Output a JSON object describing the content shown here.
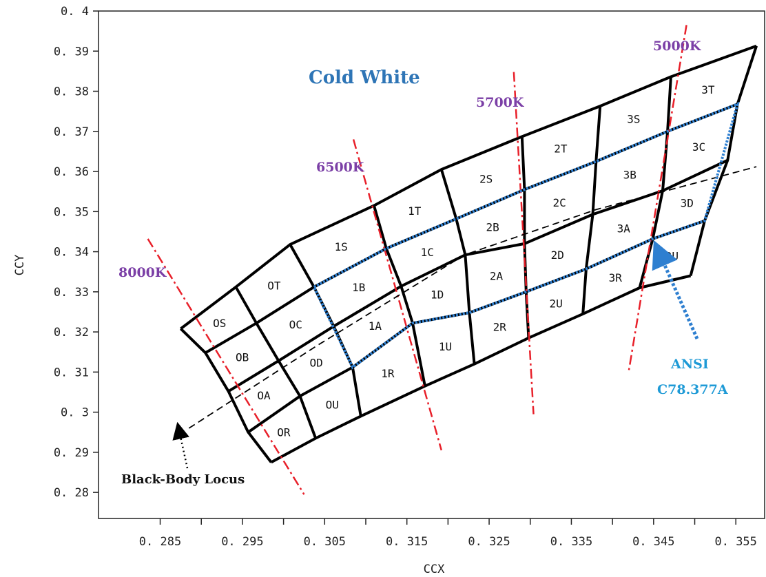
{
  "chart_data": {
    "type": "diagram",
    "title": "Cold White",
    "xlabel": "CCX",
    "ylabel": "CCY",
    "xlim": [
      0.2775,
      0.3585
    ],
    "ylim": [
      0.2735,
      0.4
    ],
    "grid": false,
    "x_ticks": [
      "0.285",
      "0.295",
      "0.305",
      "0.315",
      "0.325",
      "0.335",
      "0.345",
      "0.355"
    ],
    "x_tick_values": [
      0.285,
      0.29,
      0.295,
      0.3,
      0.305,
      0.31,
      0.315,
      0.32,
      0.325,
      0.33,
      0.335,
      0.34,
      0.345,
      0.35,
      0.355
    ],
    "y_ticks": [
      "0.28",
      "0.29",
      "0.3",
      "0.31",
      "0.32",
      "0.33",
      "0.34",
      "0.35",
      "0.36",
      "0.37",
      "0.38",
      "0.39",
      "0.4"
    ],
    "y_tick_values": [
      0.28,
      0.29,
      0.3,
      0.31,
      0.32,
      0.33,
      0.34,
      0.35,
      0.36,
      0.37,
      0.38,
      0.39,
      0.4
    ],
    "tick_display": {
      "x": [
        "0. 285",
        "0. 295",
        "0. 305",
        "0. 315",
        "0. 325",
        "0. 335",
        "0. 345",
        "0. 355"
      ],
      "y": [
        "0. 28",
        "0. 29",
        "0. 3",
        "0. 31",
        "0. 32",
        "0. 33",
        "0. 34",
        "0. 35",
        "0. 36",
        "0. 37",
        "0. 38",
        "0. 39",
        "0. 4"
      ]
    },
    "bin_grid": {
      "columns": [
        [
          [
            0.2875,
            0.3208
          ],
          [
            0.2905,
            0.3148
          ],
          [
            0.2933,
            0.3052
          ],
          [
            0.2957,
            0.295
          ],
          [
            0.2985,
            0.2875
          ]
        ],
        [
          [
            0.2942,
            0.3312
          ],
          [
            0.2967,
            0.3222
          ],
          [
            0.2994,
            0.3128
          ],
          [
            0.302,
            0.304
          ],
          [
            0.3039,
            0.2935
          ]
        ],
        [
          [
            0.3008,
            0.3418
          ],
          [
            0.3037,
            0.3312
          ],
          [
            0.3061,
            0.3214
          ],
          [
            0.3084,
            0.3112
          ],
          [
            0.3094,
            0.299
          ]
        ],
        [
          [
            0.311,
            0.3515
          ],
          [
            0.3125,
            0.3408
          ],
          [
            0.3143,
            0.3314
          ],
          [
            0.3157,
            0.3222
          ],
          [
            0.3172,
            0.3065
          ]
        ],
        [
          [
            0.3192,
            0.3605
          ],
          [
            0.321,
            0.3482
          ],
          [
            0.3221,
            0.3392
          ],
          [
            0.3226,
            0.3248
          ],
          [
            0.3232,
            0.312
          ]
        ],
        [
          [
            0.329,
            0.3687
          ],
          [
            0.3293,
            0.3555
          ],
          [
            0.3293,
            0.342
          ],
          [
            0.3295,
            0.33
          ],
          [
            0.3298,
            0.3185
          ]
        ],
        [
          [
            0.3385,
            0.3763
          ],
          [
            0.338,
            0.3625
          ],
          [
            0.3376,
            0.3493
          ],
          [
            0.3368,
            0.3357
          ],
          [
            0.3364,
            0.3245
          ]
        ],
        [
          [
            0.3471,
            0.3836
          ],
          [
            0.3467,
            0.37
          ],
          [
            0.3461,
            0.3552
          ],
          [
            0.3449,
            0.3432
          ],
          [
            0.3433,
            0.331
          ]
        ],
        [
          [
            0.3575,
            0.3913
          ],
          [
            0.3552,
            0.3768
          ],
          [
            0.354,
            0.3628
          ],
          [
            0.3512,
            0.3477
          ],
          [
            0.3495,
            0.334
          ]
        ]
      ],
      "labels": [
        [
          "0S",
          "0B",
          "0A",
          "0R"
        ],
        [
          "0T",
          "0C",
          "0D",
          "0U"
        ],
        [
          "1S",
          "1B",
          "1A",
          "1R"
        ],
        [
          "1T",
          "1C",
          "1D",
          "1U"
        ],
        [
          "2S",
          "2B",
          "2A",
          "2R"
        ],
        [
          "2T",
          "2C",
          "2D",
          "2U"
        ],
        [
          "3S",
          "3B",
          "3A",
          "3R"
        ],
        [
          "3T",
          "3C",
          "3D",
          "3U"
        ]
      ],
      "label_display": [
        [
          "OS",
          "OB",
          "OA",
          "OR"
        ],
        [
          "OT",
          "OC",
          "OD",
          "OU"
        ],
        [
          "1S",
          "1B",
          "1A",
          "1R"
        ],
        [
          "1T",
          "1C",
          "1D",
          "1U"
        ],
        [
          "2S",
          "2B",
          "2A",
          "2R"
        ],
        [
          "2T",
          "2C",
          "2D",
          "2U"
        ],
        [
          "3S",
          "3B",
          "3A",
          "3R"
        ],
        [
          "3T",
          "3C",
          "3D",
          "3U"
        ]
      ]
    },
    "ansi_region": {
      "name": "ANSI C78.377A",
      "points": [
        [
          0.3037,
          0.3312
        ],
        [
          0.3125,
          0.3408
        ],
        [
          0.321,
          0.3482
        ],
        [
          0.3293,
          0.3555
        ],
        [
          0.338,
          0.3625
        ],
        [
          0.3467,
          0.37
        ],
        [
          0.3552,
          0.3768
        ],
        [
          0.3512,
          0.3477
        ],
        [
          0.3449,
          0.3432
        ],
        [
          0.3368,
          0.3357
        ],
        [
          0.3295,
          0.33
        ],
        [
          0.3226,
          0.3248
        ],
        [
          0.3157,
          0.3222
        ],
        [
          0.3084,
          0.3112
        ]
      ]
    },
    "cct_lines": [
      {
        "label": "8000K",
        "from": [
          0.2835,
          0.3432
        ],
        "to": [
          0.3025,
          0.2795
        ]
      },
      {
        "label": "6500K",
        "from": [
          0.3085,
          0.368
        ],
        "to": [
          0.3192,
          0.2905
        ]
      },
      {
        "label": "5700K",
        "from": [
          0.328,
          0.3848
        ],
        "to": [
          0.3304,
          0.2995
        ]
      },
      {
        "label": "5000K",
        "from": [
          0.349,
          0.3965
        ],
        "to": [
          0.342,
          0.3105
        ]
      }
    ],
    "black_body_locus": {
      "label": "Black-Body Locus",
      "points": [
        [
          0.2885,
          0.296
        ],
        [
          0.304,
          0.3165
        ],
        [
          0.322,
          0.3392
        ],
        [
          0.338,
          0.3505
        ],
        [
          0.3575,
          0.3612
        ]
      ]
    },
    "annotations": [
      {
        "text": "Cold White",
        "role": "title"
      },
      {
        "text": "5000K",
        "role": "cct-label"
      },
      {
        "text": "5700K",
        "role": "cct-label"
      },
      {
        "text": "6500K",
        "role": "cct-label"
      },
      {
        "text": "8000K",
        "role": "cct-label"
      },
      {
        "text": "ANSI",
        "role": "ansi-label"
      },
      {
        "text": "C78.377A",
        "role": "ansi-label"
      },
      {
        "text": "Black-Body Locus",
        "role": "locus-label"
      }
    ],
    "colors": {
      "bin_edges": "#000000",
      "cct_lines": "#e8202a",
      "ansi_outline": "#2e7fd0",
      "cct_label": "#7b3fa6",
      "title": "#2e75b6",
      "ansi_label": "#1e9ad6"
    }
  }
}
